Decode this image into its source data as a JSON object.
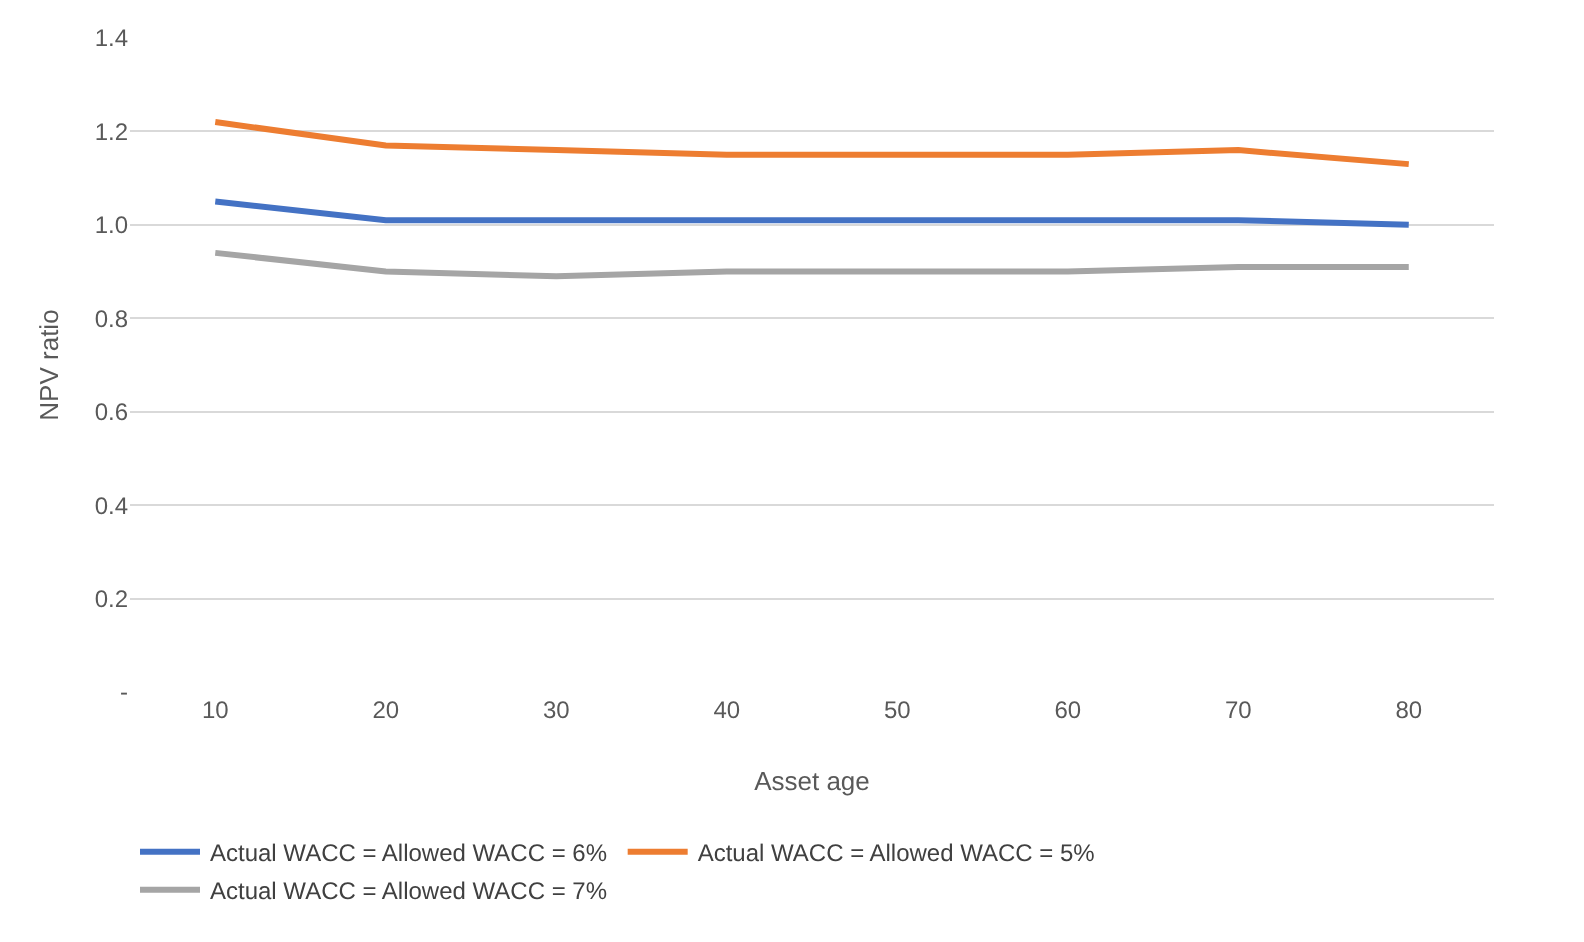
{
  "chart_data": {
    "type": "line",
    "xlabel": "Asset age",
    "ylabel": "NPV ratio",
    "categories": [
      "10",
      "20",
      "30",
      "40",
      "50",
      "60",
      "70",
      "80"
    ],
    "series": [
      {
        "name": "Actual WACC = Allowed WACC = 6%",
        "color": "#4472c4",
        "values": [
          1.05,
          1.01,
          1.01,
          1.01,
          1.01,
          1.01,
          1.01,
          1.0
        ]
      },
      {
        "name": "Actual WACC = Allowed WACC = 5%",
        "color": "#ed7d31",
        "values": [
          1.22,
          1.17,
          1.16,
          1.15,
          1.15,
          1.15,
          1.16,
          1.13
        ]
      },
      {
        "name": "Actual WACC = Allowed WACC = 7%",
        "color": "#a5a5a5",
        "values": [
          0.94,
          0.9,
          0.89,
          0.9,
          0.9,
          0.9,
          0.91,
          0.91
        ]
      }
    ],
    "ylim": [
      0,
      1.4
    ],
    "yticks": [
      {
        "value": 0,
        "label": "-"
      },
      0.2,
      0.4,
      0.6,
      0.8,
      {
        "value": 1,
        "label": "1.0"
      },
      1.2,
      1.4
    ],
    "grid": "y",
    "legend": "bottom",
    "marker": "none",
    "line_style": "solid"
  }
}
